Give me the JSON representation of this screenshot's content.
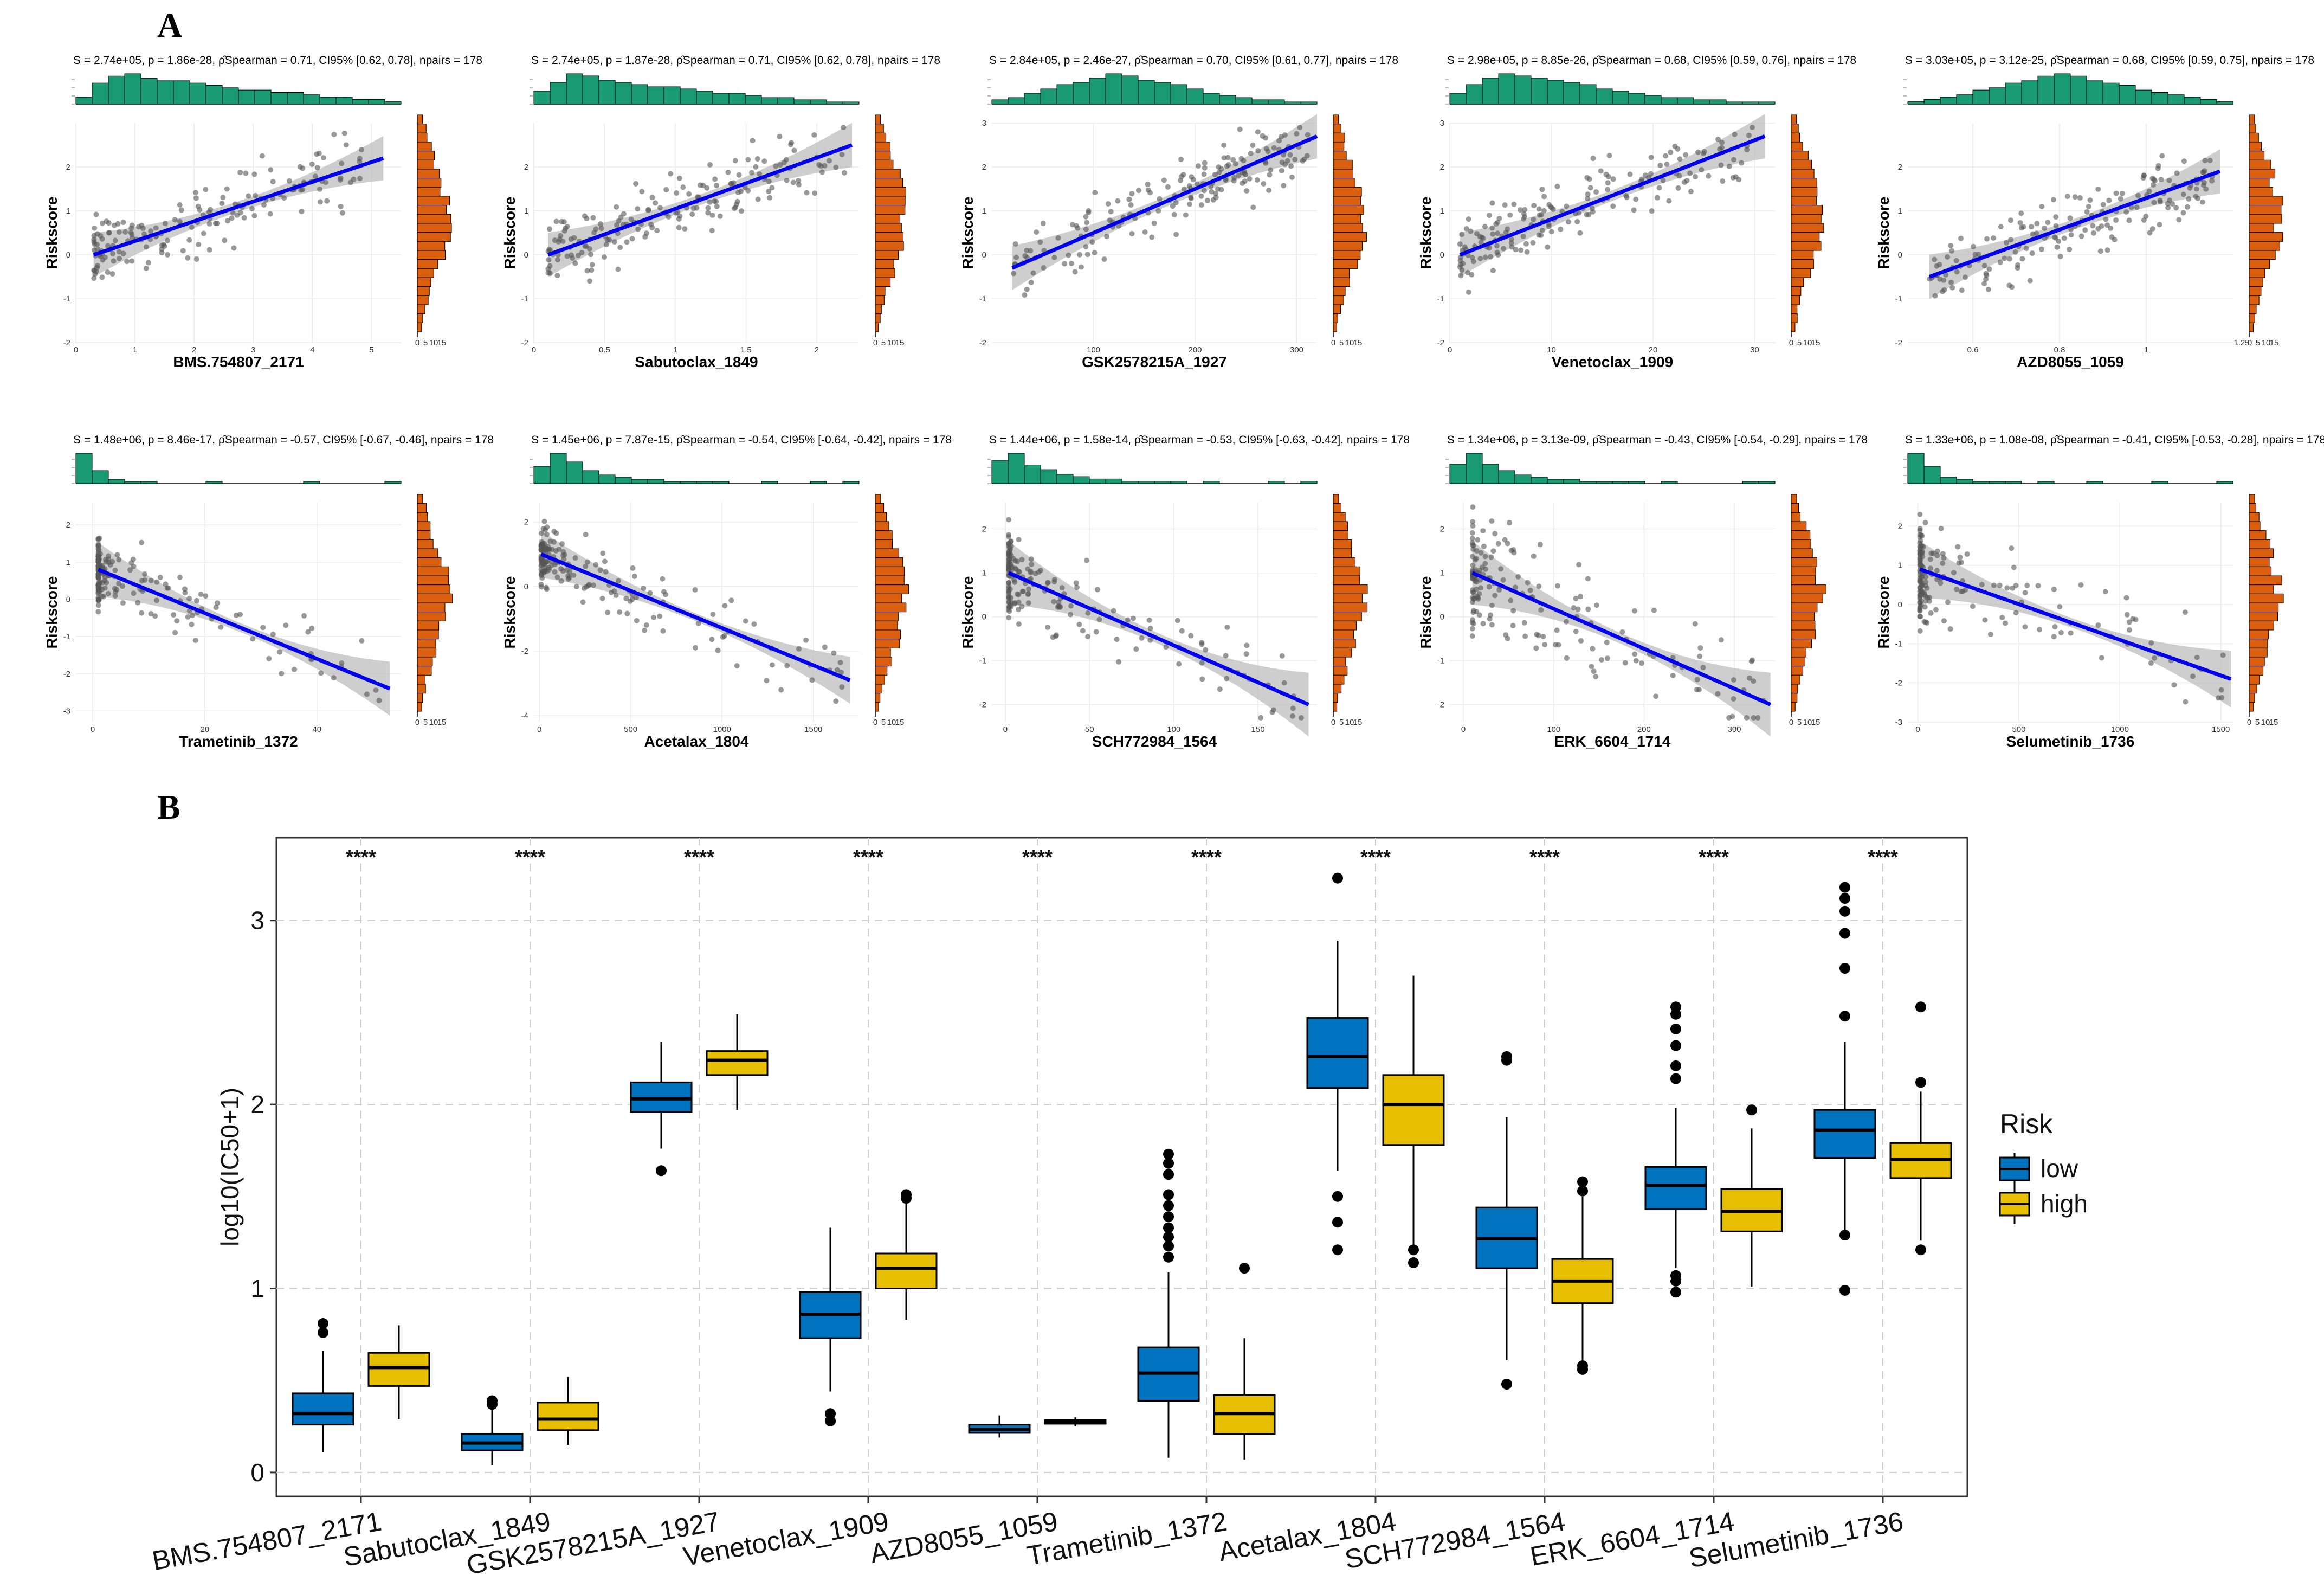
{
  "panel_labels": {
    "a": "A",
    "b": "B"
  },
  "colors": {
    "marginal_x": "#1a9a73",
    "marginal_y": "#d95f0e",
    "regression_line": "#0000ee",
    "ci_band": "#bdbdbd",
    "points": "#555555",
    "risk_low": "#0072bd",
    "risk_high": "#e8be00"
  },
  "chart_data": [
    {
      "type": "scatter",
      "panel": "A",
      "ylabel": "Riskscore",
      "subplots": [
        {
          "drug": "BMS.754807_2171",
          "stat": "S = 2.74e+05, p = 1.86e-28, ρ̂Spearman = 0.71, CI95% [0.62, 0.78], npairs = 178",
          "xlim": [
            0,
            5.5
          ],
          "xticks": [
            0,
            1,
            2,
            3,
            4,
            5
          ],
          "ylim": [
            -2,
            3
          ],
          "yticks": [
            -2,
            -1,
            0,
            1,
            2
          ],
          "fit": [
            [
              0.3,
              0.0
            ],
            [
              5.2,
              2.2
            ]
          ],
          "rho": 0.71,
          "xskew": 1.6,
          "hist_x": [
            3,
            9,
            12,
            13,
            11,
            10,
            10,
            9,
            8,
            7,
            6,
            6,
            5,
            5,
            4,
            3,
            3,
            2,
            2,
            1
          ]
        },
        {
          "drug": "Sabutoclax_1849",
          "stat": "S = 2.74e+05, p = 1.87e-28, ρ̂Spearman = 0.71, CI95% [0.62, 0.78], npairs = 178",
          "xlim": [
            0,
            2.3
          ],
          "xticks": [
            0,
            0.5,
            1.0,
            1.5,
            2.0
          ],
          "ylim": [
            -2,
            3
          ],
          "yticks": [
            -2,
            -1,
            0,
            1,
            2
          ],
          "fit": [
            [
              0.1,
              0.0
            ],
            [
              2.25,
              2.5
            ]
          ],
          "rho": 0.71,
          "xskew": 1.4,
          "hist_x": [
            6,
            10,
            14,
            13,
            11,
            10,
            9,
            8,
            8,
            7,
            6,
            5,
            5,
            4,
            3,
            3,
            2,
            2,
            1,
            1
          ]
        },
        {
          "drug": "GSK2578215A_1927",
          "stat": "S = 2.84e+05, p = 2.46e-27, ρ̂Spearman = 0.70, CI95% [0.61, 0.77], npairs = 178",
          "xlim": [
            0,
            320
          ],
          "xticks": [
            100,
            200,
            300
          ],
          "ylim": [
            -2,
            3
          ],
          "yticks": [
            -2,
            -1,
            0,
            1,
            2,
            3
          ],
          "fit": [
            [
              20,
              -0.3
            ],
            [
              320,
              2.7
            ]
          ],
          "rho": 0.7,
          "xskew": 0.9,
          "hist_x": [
            2,
            3,
            5,
            7,
            9,
            10,
            12,
            14,
            13,
            11,
            10,
            9,
            7,
            5,
            4,
            3,
            2,
            2,
            1,
            1
          ]
        },
        {
          "drug": "Venetoclax_1909",
          "stat": "S = 2.98e+05, p = 8.85e-26, ρ̂Spearman = 0.68, CI95% [0.59, 0.76], npairs = 178",
          "xlim": [
            0,
            32
          ],
          "xticks": [
            0,
            10,
            20,
            30
          ],
          "ylim": [
            -2,
            3
          ],
          "yticks": [
            -2,
            -1,
            0,
            1,
            2,
            3
          ],
          "fit": [
            [
              1,
              0.0
            ],
            [
              31,
              2.7
            ]
          ],
          "rho": 0.68,
          "xskew": 1.5,
          "hist_x": [
            5,
            9,
            12,
            14,
            13,
            12,
            11,
            10,
            9,
            7,
            6,
            5,
            4,
            3,
            3,
            2,
            2,
            1,
            1,
            1
          ]
        },
        {
          "drug": "AZD8055_1059",
          "stat": "S = 3.03e+05, p = 3.12e-25, ρ̂Spearman = 0.68, CI95% [0.59, 0.75], npairs = 178",
          "xlim": [
            0.45,
            1.2
          ],
          "xticks": [
            0.6,
            0.8,
            1.0
          ],
          "ylim": [
            -2,
            3
          ],
          "yticks": [
            -2,
            -1,
            0,
            1,
            2
          ],
          "fit": [
            [
              0.5,
              -0.5
            ],
            [
              1.17,
              1.9
            ]
          ],
          "rho": 0.68,
          "xskew": 1.0,
          "hist_x": [
            1,
            2,
            3,
            4,
            6,
            7,
            9,
            10,
            12,
            13,
            12,
            10,
            9,
            8,
            6,
            5,
            4,
            3,
            2,
            1
          ]
        },
        {
          "drug": "Trametinib_1372",
          "stat": "S = 1.48e+06, p = 8.46e-17, ρ̂Spearman = -0.57, CI95% [-0.67, -0.46], npairs = 178",
          "xlim": [
            -3,
            55
          ],
          "xticks": [
            0,
            20,
            40
          ],
          "ylim": [
            -3.3,
            2.6
          ],
          "yticks": [
            -3,
            -2,
            -1,
            0,
            1,
            2
          ],
          "fit": [
            [
              1,
              0.8
            ],
            [
              53,
              -2.4
            ]
          ],
          "rho": -0.57,
          "xskew": 6.0,
          "hist_x": [
            14,
            6,
            2,
            1,
            1,
            0,
            0,
            0,
            1,
            0,
            0,
            0,
            0,
            0,
            1,
            0,
            0,
            0,
            0,
            1
          ]
        },
        {
          "drug": "Acetalax_1804",
          "stat": "S = 1.45e+06, p = 7.87e-15, ρ̂Spearman = -0.54, CI95% [-0.64, -0.42], npairs = 178",
          "xlim": [
            -30,
            1750
          ],
          "xticks": [
            0,
            500,
            1000,
            1500
          ],
          "ylim": [
            -4.2,
            2.6
          ],
          "yticks": [
            -4,
            -2,
            0,
            2
          ],
          "fit": [
            [
              10,
              1.0
            ],
            [
              1700,
              -2.9
            ]
          ],
          "rho": -0.54,
          "xskew": 3.5,
          "hist_x": [
            8,
            14,
            10,
            6,
            4,
            3,
            2,
            2,
            1,
            1,
            1,
            1,
            0,
            0,
            1,
            0,
            0,
            1,
            0,
            1
          ]
        },
        {
          "drug": "SCH772984_1564",
          "stat": "S = 1.44e+06, p = 1.58e-14, ρ̂Spearman = -0.53, CI95% [-0.63, -0.42], npairs = 178",
          "xlim": [
            -8,
            185
          ],
          "xticks": [
            0,
            50,
            100,
            150
          ],
          "ylim": [
            -2.4,
            2.6
          ],
          "yticks": [
            -2,
            -1,
            0,
            1,
            2
          ],
          "fit": [
            [
              2,
              1.0
            ],
            [
              180,
              -2.0
            ]
          ],
          "rho": -0.53,
          "xskew": 3.5,
          "hist_x": [
            10,
            13,
            8,
            6,
            4,
            3,
            2,
            2,
            1,
            1,
            1,
            1,
            0,
            1,
            0,
            0,
            0,
            1,
            0,
            1
          ]
        },
        {
          "drug": "ERK_6604_1714",
          "stat": "S = 1.34e+06, p = 3.13e-09, ρ̂Spearman = -0.43, CI95% [-0.54, -0.29], npairs = 178",
          "xlim": [
            -15,
            345
          ],
          "xticks": [
            0,
            100,
            200,
            300
          ],
          "ylim": [
            -2.4,
            2.6
          ],
          "yticks": [
            -2,
            -1,
            0,
            1,
            2
          ],
          "fit": [
            [
              10,
              1.0
            ],
            [
              340,
              -2.0
            ]
          ],
          "rho": -0.43,
          "xskew": 3.0,
          "hist_x": [
            9,
            14,
            9,
            6,
            4,
            3,
            2,
            2,
            1,
            1,
            1,
            1,
            0,
            1,
            0,
            0,
            0,
            0,
            1,
            1
          ]
        },
        {
          "drug": "Selumetinib_1736",
          "stat": "S = 1.33e+06, p = 1.08e-08, ρ̂Spearman = -0.41, CI95% [-0.53, -0.28], npairs = 178",
          "xlim": [
            -50,
            1560
          ],
          "xticks": [
            0,
            500,
            1000,
            1500
          ],
          "ylim": [
            -3.0,
            2.6
          ],
          "yticks": [
            -3,
            -2,
            -1,
            0,
            1,
            2
          ],
          "fit": [
            [
              10,
              0.9
            ],
            [
              1550,
              -1.9
            ]
          ],
          "rho": -0.41,
          "xskew": 5.0,
          "hist_x": [
            14,
            8,
            3,
            2,
            1,
            1,
            1,
            0,
            1,
            0,
            0,
            1,
            0,
            0,
            0,
            1,
            0,
            0,
            0,
            1
          ]
        }
      ],
      "marginal_y_ticks": [
        "0",
        "5",
        "10",
        "15"
      ],
      "marginal_y_ticks_alt": [
        "1.25",
        "0",
        "5",
        "10",
        "15"
      ]
    },
    {
      "type": "box",
      "panel": "B",
      "ylabel": "log10(IC50+1)",
      "yticks": [
        0,
        1,
        2,
        3
      ],
      "ylim": [
        -0.13,
        3.45
      ],
      "legend_title": "Risk",
      "legend_items": [
        "low",
        "high"
      ],
      "significance": "****",
      "categories": [
        "BMS.754807_2171",
        "Sabutoclax_1849",
        "GSK2578215A_1927",
        "Venetoclax_1909",
        "AZD8055_1059",
        "Trametinib_1372",
        "Acetalax_1804",
        "SCH772984_1564",
        "ERK_6604_1714",
        "Selumetinib_1736"
      ],
      "series": [
        {
          "name": "low",
          "boxes": [
            {
              "min": 0.11,
              "q1": 0.26,
              "median": 0.32,
              "q3": 0.43,
              "max": 0.66,
              "outliers": [
                0.76,
                0.81
              ]
            },
            {
              "min": 0.04,
              "q1": 0.12,
              "median": 0.16,
              "q3": 0.21,
              "max": 0.34,
              "outliers": [
                0.37,
                0.39
              ]
            },
            {
              "min": 1.76,
              "q1": 1.96,
              "median": 2.03,
              "q3": 2.12,
              "max": 2.34,
              "outliers": [
                1.64
              ]
            },
            {
              "min": 0.44,
              "q1": 0.73,
              "median": 0.86,
              "q3": 0.98,
              "max": 1.33,
              "outliers": [
                0.28,
                0.32
              ]
            },
            {
              "min": 0.19,
              "q1": 0.215,
              "median": 0.235,
              "q3": 0.26,
              "max": 0.31,
              "outliers": []
            },
            {
              "min": 0.08,
              "q1": 0.39,
              "median": 0.54,
              "q3": 0.68,
              "max": 1.09,
              "outliers": [
                1.17,
                1.23,
                1.28,
                1.33,
                1.39,
                1.45,
                1.51,
                1.62,
                1.68,
                1.73
              ]
            },
            {
              "min": 1.64,
              "q1": 2.09,
              "median": 2.26,
              "q3": 2.47,
              "max": 2.89,
              "outliers": [
                1.21,
                1.36,
                1.5,
                3.23
              ]
            },
            {
              "min": 0.61,
              "q1": 1.11,
              "median": 1.27,
              "q3": 1.44,
              "max": 1.93,
              "outliers": [
                0.48,
                2.24,
                2.26
              ]
            },
            {
              "min": 1.11,
              "q1": 1.43,
              "median": 1.56,
              "q3": 1.66,
              "max": 1.98,
              "outliers": [
                0.98,
                1.04,
                1.07,
                2.14,
                2.21,
                2.32,
                2.41,
                2.49,
                2.53
              ]
            },
            {
              "min": 1.31,
              "q1": 1.71,
              "median": 1.86,
              "q3": 1.97,
              "max": 2.34,
              "outliers": [
                0.99,
                1.29,
                2.48,
                2.74,
                2.93,
                3.05,
                3.12,
                3.18
              ]
            }
          ]
        },
        {
          "name": "high",
          "boxes": [
            {
              "min": 0.29,
              "q1": 0.47,
              "median": 0.57,
              "q3": 0.65,
              "max": 0.8,
              "outliers": []
            },
            {
              "min": 0.15,
              "q1": 0.23,
              "median": 0.29,
              "q3": 0.38,
              "max": 0.52,
              "outliers": []
            },
            {
              "min": 1.97,
              "q1": 2.16,
              "median": 2.24,
              "q3": 2.29,
              "max": 2.49,
              "outliers": []
            },
            {
              "min": 0.83,
              "q1": 1.0,
              "median": 1.11,
              "q3": 1.19,
              "max": 1.46,
              "outliers": [
                1.49,
                1.51
              ]
            },
            {
              "min": 0.25,
              "q1": 0.265,
              "median": 0.275,
              "q3": 0.285,
              "max": 0.3,
              "outliers": []
            },
            {
              "min": 0.07,
              "q1": 0.21,
              "median": 0.32,
              "q3": 0.42,
              "max": 0.73,
              "outliers": [
                1.11
              ]
            },
            {
              "min": 1.19,
              "q1": 1.78,
              "median": 2.0,
              "q3": 2.16,
              "max": 2.7,
              "outliers": [
                1.14,
                1.21
              ]
            },
            {
              "min": 0.59,
              "q1": 0.92,
              "median": 1.04,
              "q3": 1.16,
              "max": 1.5,
              "outliers": [
                0.56,
                0.58,
                1.53,
                1.58
              ]
            },
            {
              "min": 1.01,
              "q1": 1.31,
              "median": 1.42,
              "q3": 1.54,
              "max": 1.87,
              "outliers": [
                1.97
              ]
            },
            {
              "min": 1.26,
              "q1": 1.6,
              "median": 1.7,
              "q3": 1.79,
              "max": 2.07,
              "outliers": [
                1.21,
                2.12,
                2.53
              ]
            }
          ]
        }
      ]
    }
  ]
}
